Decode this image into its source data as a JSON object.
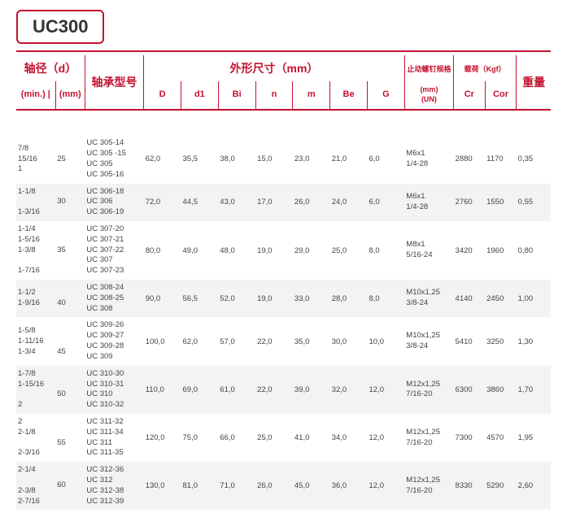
{
  "title": "UC300",
  "accent_color": "#c41230",
  "header": {
    "shaft_group": "轴径（d）",
    "shaft_min": "(min.)",
    "shaft_mm": "(mm)",
    "model": "轴承型号",
    "dims_group": "外形尺寸（mm）",
    "D": "D",
    "d1": "d1",
    "Bi": "Bi",
    "n": "n",
    "m": "m",
    "Be": "Be",
    "G": "G",
    "screw_group": "止动螺钉规格",
    "screw_un": "(mm)\n(UN)",
    "load_group": "载荷（Kgf）",
    "Cr": "Cr",
    "Cor": "Cor",
    "weight": "重量"
  },
  "rows": [
    {
      "alt": false,
      "min": "7/8\n15/16\n1",
      "mm": "25",
      "model": "UC 305-14\nUC 305 -15\nUC 305\nUC 305-16",
      "D": "62,0",
      "d1": "35,5",
      "Bi": "38,0",
      "n": "15,0",
      "m": "23,0",
      "Be": "21,0",
      "G": "6,0",
      "un": "M6x1\n1/4-28",
      "Cr": "2880",
      "Cor": "1170",
      "wt": "0,35"
    },
    {
      "alt": true,
      "min": "1-1/8\n\n1-3/16",
      "mm": "30",
      "model": "UC 306-18\nUC 306\nUC 306-19",
      "D": "72,0",
      "d1": "44,5",
      "Bi": "43,0",
      "n": "17,0",
      "m": "26,0",
      "Be": "24,0",
      "G": "6,0",
      "un": "M6x1\n1/4-28",
      "Cr": "2760",
      "Cor": "1550",
      "wt": "0,55"
    },
    {
      "alt": false,
      "min": "1-1/4\n1-5/16\n1-3/8\n\n1-7/16",
      "mm": "35",
      "model": "UC 307-20\nUC 307-21\nUC 307-22\nUC 307\nUC 307-23",
      "D": "80,0",
      "d1": "49,0",
      "Bi": "48,0",
      "n": "19,0",
      "m": "29,0",
      "Be": "25,0",
      "G": "8,0",
      "un": "M8x1\n5/16-24",
      "Cr": "3420",
      "Cor": "1960",
      "wt": "0,80"
    },
    {
      "alt": true,
      "min": "1-1/2\n1-9/16",
      "mm": "\n40",
      "model": "UC 308-24\nUC 308-25\nUC 308",
      "D": "90,0",
      "d1": "56,5",
      "Bi": "52,0",
      "n": "19,0",
      "m": "33,0",
      "Be": "28,0",
      "G": "8,0",
      "un": "M10x1,25\n3/8-24",
      "Cr": "4140",
      "Cor": "2450",
      "wt": "1,00"
    },
    {
      "alt": false,
      "min": "1-5/8\n1-11/16\n1-3/4",
      "mm": "\n\n45",
      "model": "UC 309-26\nUC 309-27\nUC 309-28\nUC 309",
      "D": "100,0",
      "d1": "62,0",
      "Bi": "57,0",
      "n": "22,0",
      "m": "35,0",
      "Be": "30,0",
      "G": "10,0",
      "un": "M10x1,25\n3/8-24",
      "Cr": "5410",
      "Cor": "3250",
      "wt": "1,30"
    },
    {
      "alt": true,
      "min": "1-7/8\n1-15/16\n\n2",
      "mm": "\n50",
      "model": "UC 310-30\nUC 310-31\nUC 310\nUC 310-32",
      "D": "110,0",
      "d1": "69,0",
      "Bi": "61,0",
      "n": "22,0",
      "m": "39,0",
      "Be": "32,0",
      "G": "12,0",
      "un": "M12x1,25\n7/16-20",
      "Cr": "6300",
      "Cor": "3860",
      "wt": "1,70"
    },
    {
      "alt": false,
      "min": "2\n2-1/8\n\n2-3/16",
      "mm": "\n55",
      "model": "UC 311-32\nUC 311-34\nUC 311\nUC 311-35",
      "D": "120,0",
      "d1": "75,0",
      "Bi": "66,0",
      "n": "25,0",
      "m": "41,0",
      "Be": "34,0",
      "G": "12,0",
      "un": "M12x1,25\n7/16-20",
      "Cr": "7300",
      "Cor": "4570",
      "wt": "1,95"
    },
    {
      "alt": true,
      "min": "2-1/4\n\n2-3/8\n2-7/16",
      "mm": "60",
      "model": "UC 312-36\nUC 312\nUC 312-38\nUC 312-39",
      "D": "130,0",
      "d1": "81,0",
      "Bi": "71,0",
      "n": "26,0",
      "m": "45,0",
      "Be": "36,0",
      "G": "12,0",
      "un": "M12x1,25\n7/16-20",
      "Cr": "8330",
      "Cor": "5290",
      "wt": "2,60"
    }
  ]
}
